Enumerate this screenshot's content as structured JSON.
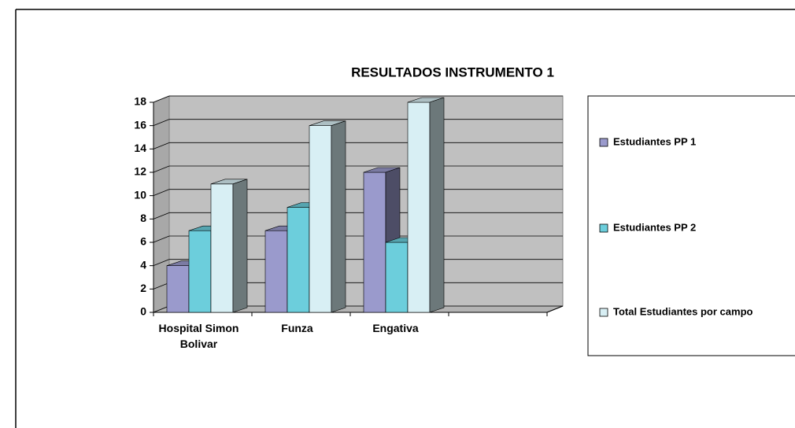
{
  "chart_data": {
    "type": "bar3d",
    "title": "RESULTADOS INSTRUMENTO 1",
    "categories": [
      "Hospital Simon Bolivar",
      "Funza",
      "Engativa",
      null
    ],
    "series": [
      {
        "name": "Estudiantes PP 1",
        "color": "#9a9acc",
        "values": [
          4,
          7,
          12,
          null
        ]
      },
      {
        "name": "Estudiantes PP 2",
        "color": "#6ccedc",
        "values": [
          7,
          9,
          6,
          null
        ]
      },
      {
        "name": "Total Estudiantes por campo",
        "color": "#d8eff4",
        "values": [
          11,
          16,
          18,
          null
        ]
      }
    ],
    "ylim": [
      0,
      18
    ],
    "yticks": [
      0,
      2,
      4,
      6,
      8,
      10,
      12,
      14,
      16,
      18
    ],
    "grid": true,
    "legend": "right"
  }
}
